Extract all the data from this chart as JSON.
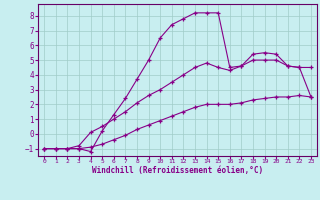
{
  "xlabel": "Windchill (Refroidissement éolien,°C)",
  "background_color": "#c8eef0",
  "grid_color": "#a0ccc8",
  "line_color": "#880088",
  "spine_color": "#660066",
  "xlim": [
    -0.5,
    23.5
  ],
  "ylim": [
    -1.5,
    8.8
  ],
  "xticks": [
    0,
    1,
    2,
    3,
    4,
    5,
    6,
    7,
    8,
    9,
    10,
    11,
    12,
    13,
    14,
    15,
    16,
    17,
    18,
    19,
    20,
    21,
    22,
    23
  ],
  "yticks": [
    -1,
    0,
    1,
    2,
    3,
    4,
    5,
    6,
    7,
    8
  ],
  "line1_x": [
    0,
    1,
    2,
    3,
    4,
    5,
    6,
    7,
    8,
    9,
    10,
    11,
    12,
    13,
    14,
    15,
    16,
    17,
    18,
    19,
    20,
    21,
    22,
    23
  ],
  "line1_y": [
    -1,
    -1,
    -1,
    -1,
    -1.2,
    0.2,
    1.3,
    2.4,
    3.7,
    5.0,
    6.5,
    7.4,
    7.8,
    8.2,
    8.2,
    8.2,
    4.5,
    4.6,
    5.4,
    5.5,
    5.4,
    4.6,
    4.5,
    4.5
  ],
  "line2_x": [
    0,
    1,
    2,
    3,
    4,
    5,
    6,
    7,
    8,
    9,
    10,
    11,
    12,
    13,
    14,
    15,
    16,
    17,
    18,
    19,
    20,
    21,
    22,
    23
  ],
  "line2_y": [
    -1,
    -1,
    -1,
    -0.8,
    0.1,
    0.5,
    1.0,
    1.5,
    2.1,
    2.6,
    3.0,
    3.5,
    4.0,
    4.5,
    4.8,
    4.5,
    4.3,
    4.6,
    5.0,
    5.0,
    5.0,
    4.6,
    4.5,
    2.5
  ],
  "line3_x": [
    0,
    1,
    2,
    3,
    4,
    5,
    6,
    7,
    8,
    9,
    10,
    11,
    12,
    13,
    14,
    15,
    16,
    17,
    18,
    19,
    20,
    21,
    22,
    23
  ],
  "line3_y": [
    -1,
    -1,
    -1,
    -1,
    -0.9,
    -0.7,
    -0.4,
    -0.1,
    0.3,
    0.6,
    0.9,
    1.2,
    1.5,
    1.8,
    2.0,
    2.0,
    2.0,
    2.1,
    2.3,
    2.4,
    2.5,
    2.5,
    2.6,
    2.5
  ]
}
